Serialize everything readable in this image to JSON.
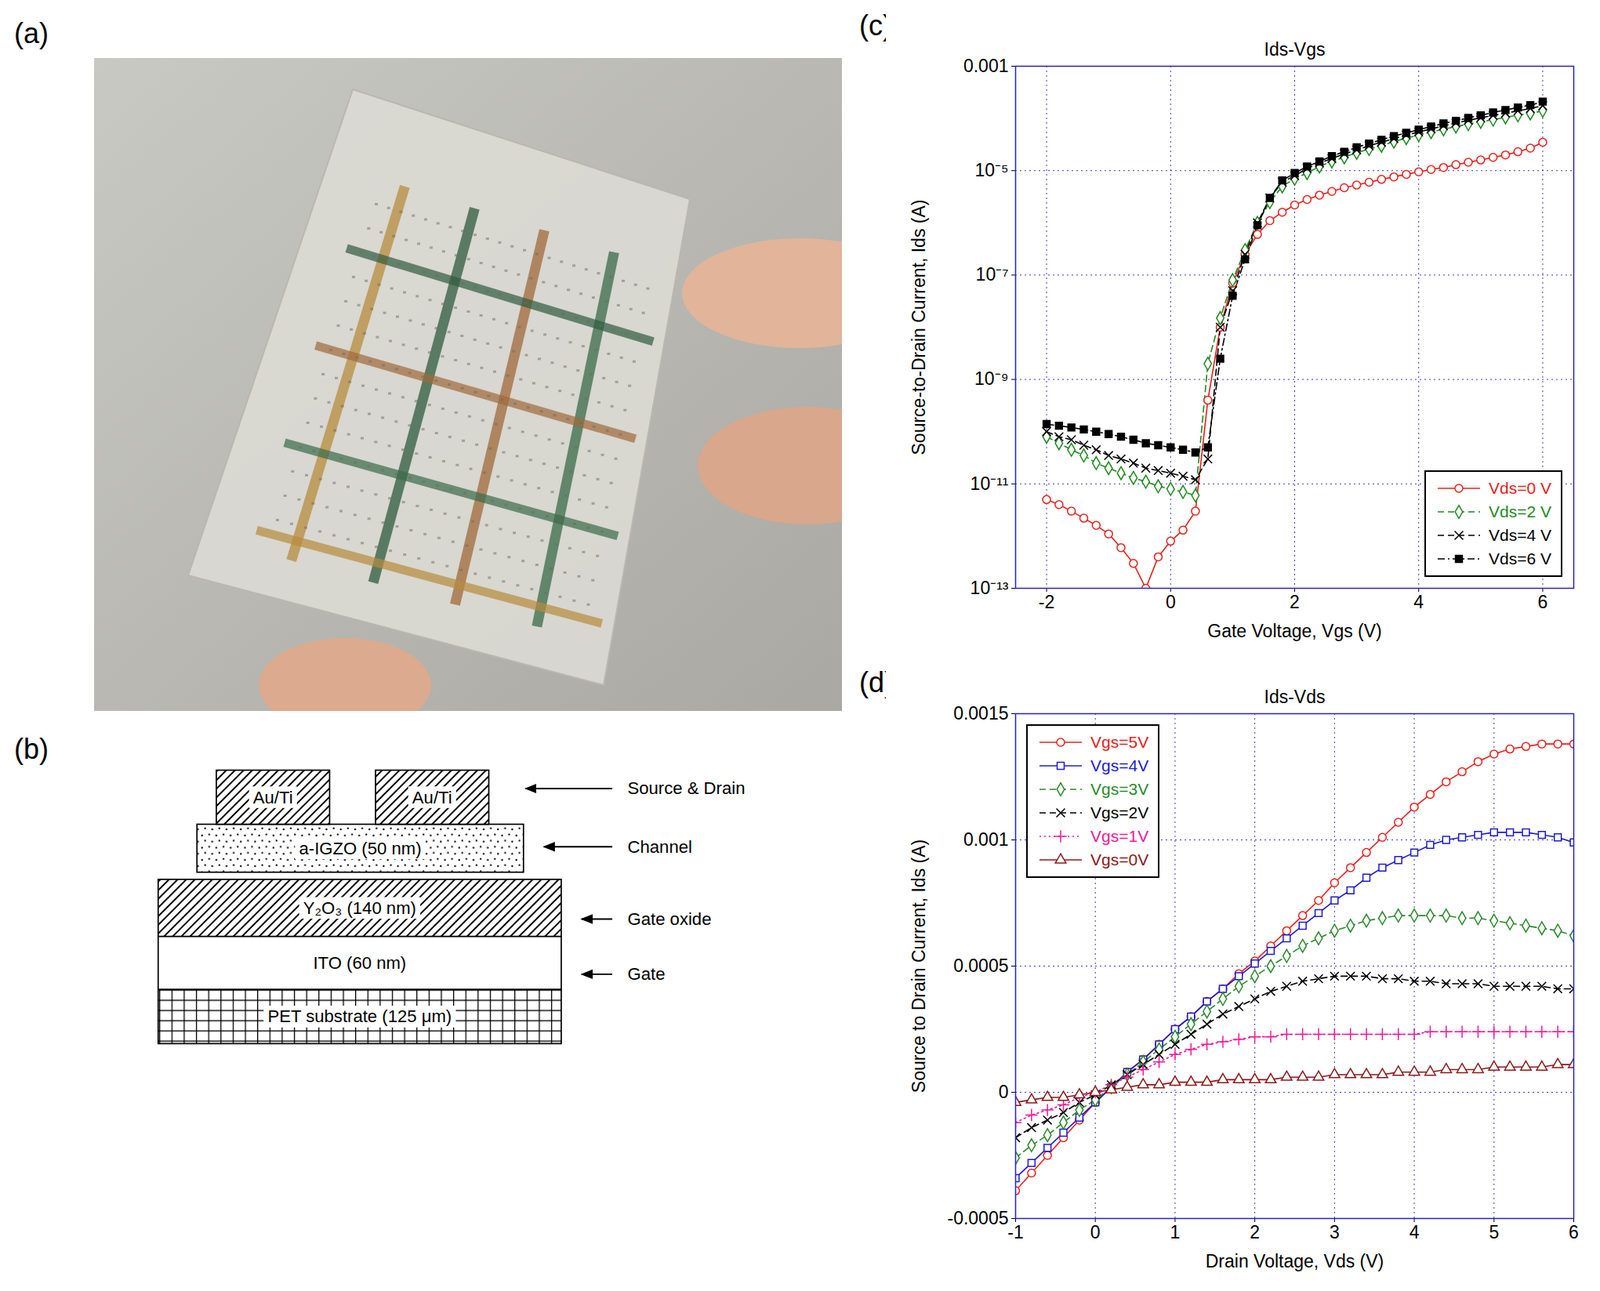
{
  "photo": {
    "panel": "(a)"
  },
  "diagram": {
    "panel": "(b)",
    "contacts": [
      "Au/Ti",
      "Au/Ti"
    ],
    "layers": [
      "a-IGZO (50 nm)",
      "Y₂O₃ (140 nm)",
      "ITO (60 nm)",
      "PET substrate (125 μm)"
    ],
    "annotations": [
      "Source & Drain",
      "Channel",
      "Gate oxide",
      "Gate"
    ]
  },
  "chart_data": [
    {
      "panel": "(c)",
      "type": "line",
      "title": "Ids-Vgs",
      "x_label": "Gate Voltage, Vgs (V)",
      "y_label": "Source-to-Drain Current, Ids (A)",
      "log": "y",
      "grid": true,
      "legend": "bottom-right",
      "xlim": [
        -2.5,
        6.5
      ],
      "xticks": [
        -2,
        0,
        2,
        4,
        6
      ],
      "ylim": [
        1e-13,
        0.001
      ],
      "yticks": [
        {
          "value": 1e-13,
          "label": "10⁻¹³"
        },
        {
          "value": 1e-11,
          "label": "10⁻¹¹"
        },
        {
          "value": 1e-09,
          "label": "10⁻⁹"
        },
        {
          "value": 1e-07,
          "label": "10⁻⁷"
        },
        {
          "value": 1e-05,
          "label": "10⁻⁵"
        },
        0.001
      ],
      "x": [
        -2,
        -1.8,
        -1.6,
        -1.4,
        -1.2,
        -1,
        -0.8,
        -0.6,
        -0.4,
        -0.2,
        0,
        0.2,
        0.4,
        0.6,
        0.8,
        1,
        1.2,
        1.4,
        1.6,
        1.8,
        2,
        2.2,
        2.4,
        2.6,
        2.8,
        3,
        3.2,
        3.4,
        3.6,
        3.8,
        4,
        4.2,
        4.4,
        4.6,
        4.8,
        5,
        5.2,
        5.4,
        5.6,
        5.8,
        6
      ],
      "series": [
        {
          "name": "Vds=0 V",
          "color": "#e8201c",
          "marker": "open_circle",
          "line_style": "solid",
          "values": [
            5e-12,
            4e-12,
            3e-12,
            2.2e-12,
            1.6e-12,
            1.1e-12,
            6e-13,
            3e-13,
            1e-13,
            4e-13,
            8e-13,
            1.3e-12,
            3e-12,
            4e-10,
            1e-08,
            7e-08,
            2.5e-07,
            6e-07,
            1.1e-06,
            1.6e-06,
            2.2e-06,
            2.8e-06,
            3.4e-06,
            4e-06,
            4.7e-06,
            5.3e-06,
            6e-06,
            6.8e-06,
            7.6e-06,
            8.5e-06,
            9.5e-06,
            1.05e-05,
            1.15e-05,
            1.3e-05,
            1.45e-05,
            1.6e-05,
            1.8e-05,
            2e-05,
            2.3e-05,
            2.7e-05,
            3.5e-05
          ]
        },
        {
          "name": "Vds=2 V",
          "color": "#1f8a1f",
          "marker": "open_diamond",
          "line_style": "dashed",
          "values": [
            8e-11,
            6e-11,
            4.5e-11,
            3.5e-11,
            2.5e-11,
            2e-11,
            1.6e-11,
            1.3e-11,
            1.1e-11,
            9e-12,
            8e-12,
            7e-12,
            6e-12,
            2e-09,
            1.5e-08,
            8e-08,
            3e-07,
            1e-06,
            2.5e-06,
            5e-06,
            7e-06,
            9e-06,
            1.2e-05,
            1.5e-05,
            1.8e-05,
            2.2e-05,
            2.6e-05,
            3e-05,
            3.6e-05,
            4.2e-05,
            4.8e-05,
            5.5e-05,
            6.2e-05,
            7e-05,
            7.8e-05,
            8.6e-05,
            9.5e-05,
            0.000105,
            0.000115,
            0.000125,
            0.00014
          ]
        },
        {
          "name": "Vds=4 V",
          "color": "#000000",
          "marker": "x",
          "line_style": "dashed",
          "values": [
            1e-10,
            8e-11,
            7e-11,
            5.5e-11,
            4.5e-11,
            3.5e-11,
            3e-11,
            2.5e-11,
            2e-11,
            1.8e-11,
            1.6e-11,
            1.4e-11,
            1.2e-11,
            3e-11,
            1e-08,
            5e-08,
            2.5e-07,
            1e-06,
            3e-06,
            6e-06,
            8e-06,
            1.1e-05,
            1.4e-05,
            1.7e-05,
            2.1e-05,
            2.5e-05,
            3e-05,
            3.5e-05,
            4.1e-05,
            4.8e-05,
            5.5e-05,
            6.3e-05,
            7.2e-05,
            8.2e-05,
            9.2e-05,
            0.000103,
            0.000114,
            0.000126,
            0.00014,
            0.000155,
            0.000175
          ]
        },
        {
          "name": "Vds=6 V",
          "color": "#000000",
          "marker": "filled_square",
          "line_style": "dashdot",
          "values": [
            1.4e-10,
            1.3e-10,
            1.2e-10,
            1.1e-10,
            1e-10,
            9e-11,
            8e-11,
            7e-11,
            6e-11,
            5.5e-11,
            5e-11,
            4.5e-11,
            4e-11,
            5e-11,
            2.5e-09,
            4e-08,
            2e-07,
            9e-07,
            3e-06,
            6.5e-06,
            9e-06,
            1.2e-05,
            1.5e-05,
            1.9e-05,
            2.3e-05,
            2.8e-05,
            3.3e-05,
            3.9e-05,
            4.6e-05,
            5.3e-05,
            6.1e-05,
            7e-05,
            8e-05,
            9e-05,
            0.000102,
            0.000115,
            0.00013,
            0.000145,
            0.000162,
            0.00018,
            0.00021
          ]
        }
      ]
    },
    {
      "panel": "(d)",
      "type": "line",
      "title": "Ids-Vds",
      "x_label": "Drain Voltage, Vds (V)",
      "y_label": "Source to Drain Current, Ids (A)",
      "grid": true,
      "legend": "top-left",
      "xlim": [
        -1,
        6
      ],
      "xticks": [
        -1,
        0,
        1,
        2,
        3,
        4,
        5,
        6
      ],
      "ylim": [
        -0.0005,
        0.0015
      ],
      "yticks": [
        -0.0005,
        0,
        0.0005,
        0.001,
        0.0015
      ],
      "x": [
        -1,
        -0.8,
        -0.6,
        -0.4,
        -0.2,
        0,
        0.2,
        0.4,
        0.6,
        0.8,
        1,
        1.2,
        1.4,
        1.6,
        1.8,
        2,
        2.2,
        2.4,
        2.6,
        2.8,
        3,
        3.2,
        3.4,
        3.6,
        3.8,
        4,
        4.2,
        4.4,
        4.6,
        4.8,
        5,
        5.2,
        5.4,
        5.6,
        5.8,
        6
      ],
      "series": [
        {
          "name": "Vgs=5V",
          "color": "#e8201c",
          "marker": "open_circle",
          "line_style": "solid",
          "values": [
            -0.00039,
            -0.00032,
            -0.00025,
            -0.00018,
            -0.00011,
            -4e-05,
            2e-05,
            8e-05,
            0.00013,
            0.00019,
            0.00025,
            0.0003,
            0.00036,
            0.00041,
            0.00047,
            0.00052,
            0.00058,
            0.00064,
            0.0007,
            0.00076,
            0.00083,
            0.00089,
            0.00095,
            0.00101,
            0.00107,
            0.00113,
            0.00118,
            0.00123,
            0.00127,
            0.00131,
            0.00134,
            0.00136,
            0.00137,
            0.00138,
            0.00138,
            0.00138
          ]
        },
        {
          "name": "Vgs=4V",
          "color": "#1c1cd0",
          "marker": "open_square",
          "line_style": "solid",
          "values": [
            -0.00034,
            -0.00028,
            -0.00022,
            -0.00016,
            -0.0001,
            -4e-05,
            2e-05,
            8e-05,
            0.00013,
            0.00019,
            0.00025,
            0.0003,
            0.00036,
            0.00041,
            0.00046,
            0.00051,
            0.00056,
            0.00061,
            0.00066,
            0.00071,
            0.00076,
            0.0008,
            0.00085,
            0.00089,
            0.00092,
            0.00095,
            0.00098,
            0.001,
            0.00101,
            0.00102,
            0.00103,
            0.00103,
            0.00103,
            0.00102,
            0.00101,
            0.00099
          ]
        },
        {
          "name": "Vgs=3V",
          "color": "#2a8a2a",
          "marker": "open_diamond",
          "line_style": "dashed",
          "values": [
            -0.00026,
            -0.00021,
            -0.00017,
            -0.00012,
            -7e-05,
            -3e-05,
            2e-05,
            7e-05,
            0.00012,
            0.00017,
            0.00022,
            0.00027,
            0.00032,
            0.00037,
            0.00042,
            0.00046,
            0.0005,
            0.00054,
            0.00058,
            0.00061,
            0.00064,
            0.00066,
            0.00068,
            0.00069,
            0.0007,
            0.0007,
            0.0007,
            0.0007,
            0.00069,
            0.00069,
            0.00068,
            0.00067,
            0.00066,
            0.00065,
            0.00064,
            0.00062
          ]
        },
        {
          "name": "Vgs=2V",
          "color": "#000000",
          "marker": "x",
          "line_style": "dashed",
          "values": [
            -0.00018,
            -0.00014,
            -0.00011,
            -8e-05,
            -4e-05,
            -1e-05,
            3e-05,
            7e-05,
            0.00011,
            0.00015,
            0.00019,
            0.00023,
            0.00027,
            0.00031,
            0.00034,
            0.00037,
            0.0004,
            0.00042,
            0.00044,
            0.00045,
            0.00046,
            0.00046,
            0.00046,
            0.00045,
            0.00045,
            0.00044,
            0.00044,
            0.00043,
            0.00043,
            0.00043,
            0.00042,
            0.00042,
            0.00042,
            0.00042,
            0.00041,
            0.00041
          ]
        },
        {
          "name": "Vgs=1V",
          "color": "#f0189a",
          "marker": "plus",
          "line_style": "dotted",
          "values": [
            -0.00012,
            -9e-05,
            -7e-05,
            -5e-05,
            -2e-05,
            0,
            3e-05,
            6e-05,
            9e-05,
            0.00012,
            0.00015,
            0.00017,
            0.00019,
            0.0002,
            0.00021,
            0.00022,
            0.00022,
            0.00023,
            0.00023,
            0.00023,
            0.00023,
            0.00023,
            0.00023,
            0.00023,
            0.00023,
            0.00023,
            0.00024,
            0.00024,
            0.00024,
            0.00024,
            0.00024,
            0.00024,
            0.00024,
            0.00024,
            0.00024,
            0.00024
          ]
        },
        {
          "name": "Vgs=0V",
          "color": "#8b1a1a",
          "marker": "open_triangle",
          "line_style": "solid",
          "values": [
            -4e-05,
            -3e-05,
            -2e-05,
            -2e-05,
            -1e-05,
            0,
            1e-05,
            2e-05,
            3e-05,
            3e-05,
            4e-05,
            4e-05,
            4e-05,
            5e-05,
            5e-05,
            5e-05,
            5e-05,
            6e-05,
            6e-05,
            6e-05,
            7e-05,
            7e-05,
            7e-05,
            7e-05,
            8e-05,
            8e-05,
            8e-05,
            9e-05,
            9e-05,
            9e-05,
            0.0001,
            0.0001,
            0.0001,
            0.0001,
            0.00011,
            0.00011
          ]
        }
      ]
    }
  ]
}
